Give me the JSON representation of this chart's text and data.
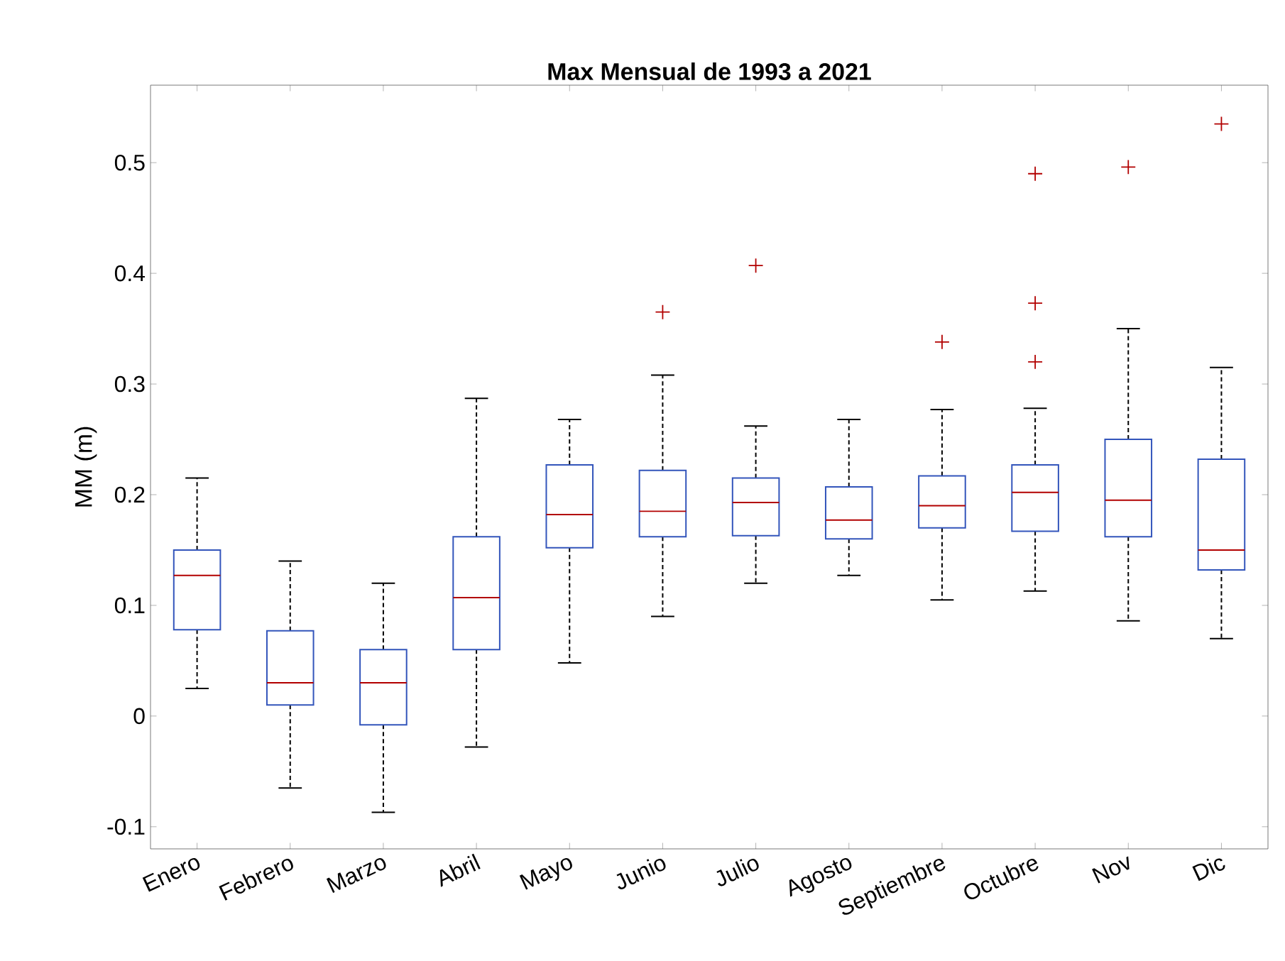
{
  "chart_data": {
    "type": "box",
    "title": "Max Mensual de 1993 a 2021",
    "ylabel": "MM (m)",
    "categories": [
      "Enero",
      "Febrero",
      "Marzo",
      "Abril",
      "Mayo",
      "Junio",
      "Julio",
      "Agosto",
      "Septiembre",
      "Octubre",
      "Nov",
      "Dic"
    ],
    "color": "#3355bb",
    "boxes": [
      {
        "low": 0.025,
        "q1": 0.078,
        "median": 0.127,
        "q3": 0.15,
        "high": 0.215
      },
      {
        "low": -0.065,
        "q1": 0.01,
        "median": 0.03,
        "q3": 0.077,
        "high": 0.14
      },
      {
        "low": -0.087,
        "q1": -0.008,
        "median": 0.03,
        "q3": 0.06,
        "high": 0.12
      },
      {
        "low": -0.028,
        "q1": 0.06,
        "median": 0.107,
        "q3": 0.162,
        "high": 0.287
      },
      {
        "low": 0.048,
        "q1": 0.152,
        "median": 0.182,
        "q3": 0.227,
        "high": 0.268
      },
      {
        "low": 0.09,
        "q1": 0.162,
        "median": 0.185,
        "q3": 0.222,
        "high": 0.308,
        "outliers": [
          0.365
        ]
      },
      {
        "low": 0.12,
        "q1": 0.163,
        "median": 0.193,
        "q3": 0.215,
        "high": 0.262,
        "outliers": [
          0.407
        ]
      },
      {
        "low": 0.127,
        "q1": 0.16,
        "median": 0.177,
        "q3": 0.207,
        "high": 0.268
      },
      {
        "low": 0.105,
        "q1": 0.17,
        "median": 0.19,
        "q3": 0.217,
        "high": 0.277,
        "outliers": [
          0.338
        ]
      },
      {
        "low": 0.113,
        "q1": 0.167,
        "median": 0.202,
        "q3": 0.227,
        "high": 0.278,
        "outliers": [
          0.32,
          0.373,
          0.49
        ]
      },
      {
        "low": 0.086,
        "q1": 0.162,
        "median": 0.195,
        "q3": 0.25,
        "high": 0.35,
        "outliers": [
          0.496
        ]
      },
      {
        "low": 0.07,
        "q1": 0.132,
        "median": 0.15,
        "q3": 0.232,
        "high": 0.315,
        "outliers": [
          0.535
        ]
      }
    ],
    "ylim": [
      -0.12,
      0.57
    ],
    "yticks": [
      -0.1,
      0,
      0.1,
      0.2,
      0.3,
      0.4,
      0.5
    ]
  }
}
